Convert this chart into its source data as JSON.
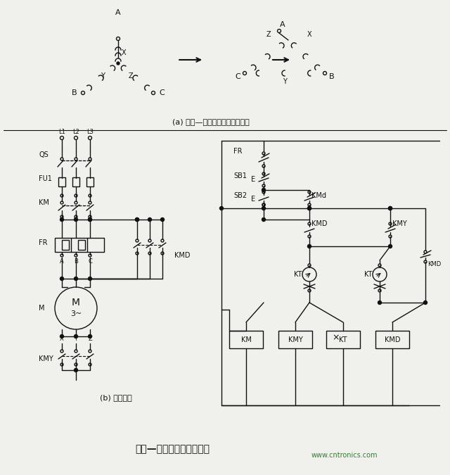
{
  "title": "星形—三角形启动控制线路",
  "subtitle_a": "(a) 星形—三角形转换绕组连接图",
  "subtitle_b": "(b) 控制线路",
  "website": "www.cntronics.com",
  "bg_color": "#f0f0ec",
  "line_color": "#111111",
  "font_color": "#111111",
  "title_color": "#111111",
  "web_color": "#3a7a3a"
}
